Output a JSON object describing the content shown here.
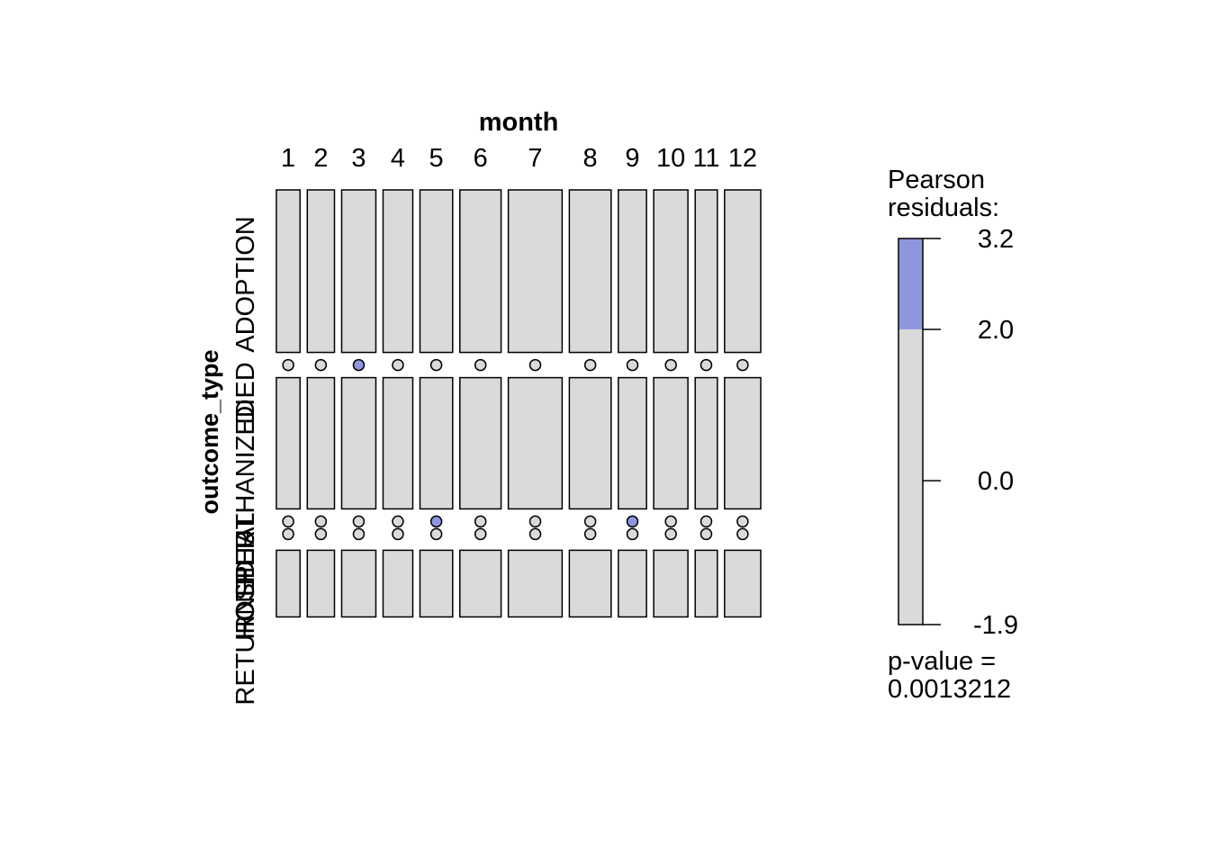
{
  "chart_data": {
    "type": "mosaic",
    "xlabel": "month",
    "ylabel": "outcome_type",
    "months": [
      "1",
      "2",
      "3",
      "4",
      "5",
      "6",
      "7",
      "8",
      "9",
      "10",
      "11",
      "12"
    ],
    "outcomes": [
      "ADOPTION",
      "DIED",
      "EUTHANIZED",
      "OTHER",
      "RETURNED",
      "HOSPITAL"
    ],
    "layout_order": [
      "ADOPTION",
      "DIED",
      "EUTHANIZED",
      "OTHER",
      "HOSPITAL",
      "RETURNED"
    ],
    "month_share": [
      0.047,
      0.054,
      0.068,
      0.059,
      0.065,
      0.082,
      0.107,
      0.083,
      0.056,
      0.068,
      0.044,
      0.072
    ],
    "outcome_share": {
      "ADOPTION": [
        0.39,
        0.39,
        0.39,
        0.39,
        0.39,
        0.39,
        0.39,
        0.39,
        0.39,
        0.39,
        0.39,
        0.39
      ],
      "DIED": [
        0.0009,
        0.0,
        0.0,
        0.0007,
        0.0007,
        0.0,
        0.0006,
        0.0007,
        0.0008,
        0.0007,
        0.0007,
        0.0
      ],
      "EUTHANIZED": [
        0.315,
        0.315,
        0.315,
        0.315,
        0.315,
        0.315,
        0.315,
        0.315,
        0.315,
        0.315,
        0.315,
        0.315
      ],
      "OTHER": [
        0.0,
        0.0007,
        0.0009,
        0.0007,
        0.0007,
        0.0009,
        0.0007,
        0.0007,
        0.0008,
        0.0009,
        0.0007,
        0.0007
      ],
      "HOSPITAL": [
        0.0009,
        0.0009,
        0.0009,
        0.0009,
        0.0009,
        0.0009,
        0.0009,
        0.0009,
        0.0009,
        0.0009,
        0.0009,
        0.0009
      ],
      "RETURNED": [
        0.16,
        0.16,
        0.16,
        0.16,
        0.16,
        0.16,
        0.16,
        0.16,
        0.16,
        0.16,
        0.16,
        0.16
      ]
    },
    "residuals": {
      "DIED": [
        0.0,
        0.0,
        2.6,
        0.0,
        0.0,
        0.0,
        0.0,
        0.0,
        0.0,
        0.0,
        0.0,
        0.0
      ],
      "OTHER": [
        0.0,
        0.0,
        0.0,
        0.0,
        2.4,
        0.0,
        0.0,
        0.0,
        2.2,
        0.0,
        0.0,
        0.0
      ]
    },
    "legend": {
      "title_line1": "Pearson",
      "title_line2": "residuals:",
      "ticks": [
        "3.2",
        "2.0",
        "0.0",
        "-1.9"
      ],
      "tick_values": [
        3.2,
        2.0,
        0.0,
        -1.9
      ],
      "range": [
        -1.9,
        3.2
      ],
      "positive_color": "#8e97dd",
      "neutral_color": "#dadada",
      "pvalue_line1": "p-value =",
      "pvalue_line2": "0.0013212"
    }
  }
}
